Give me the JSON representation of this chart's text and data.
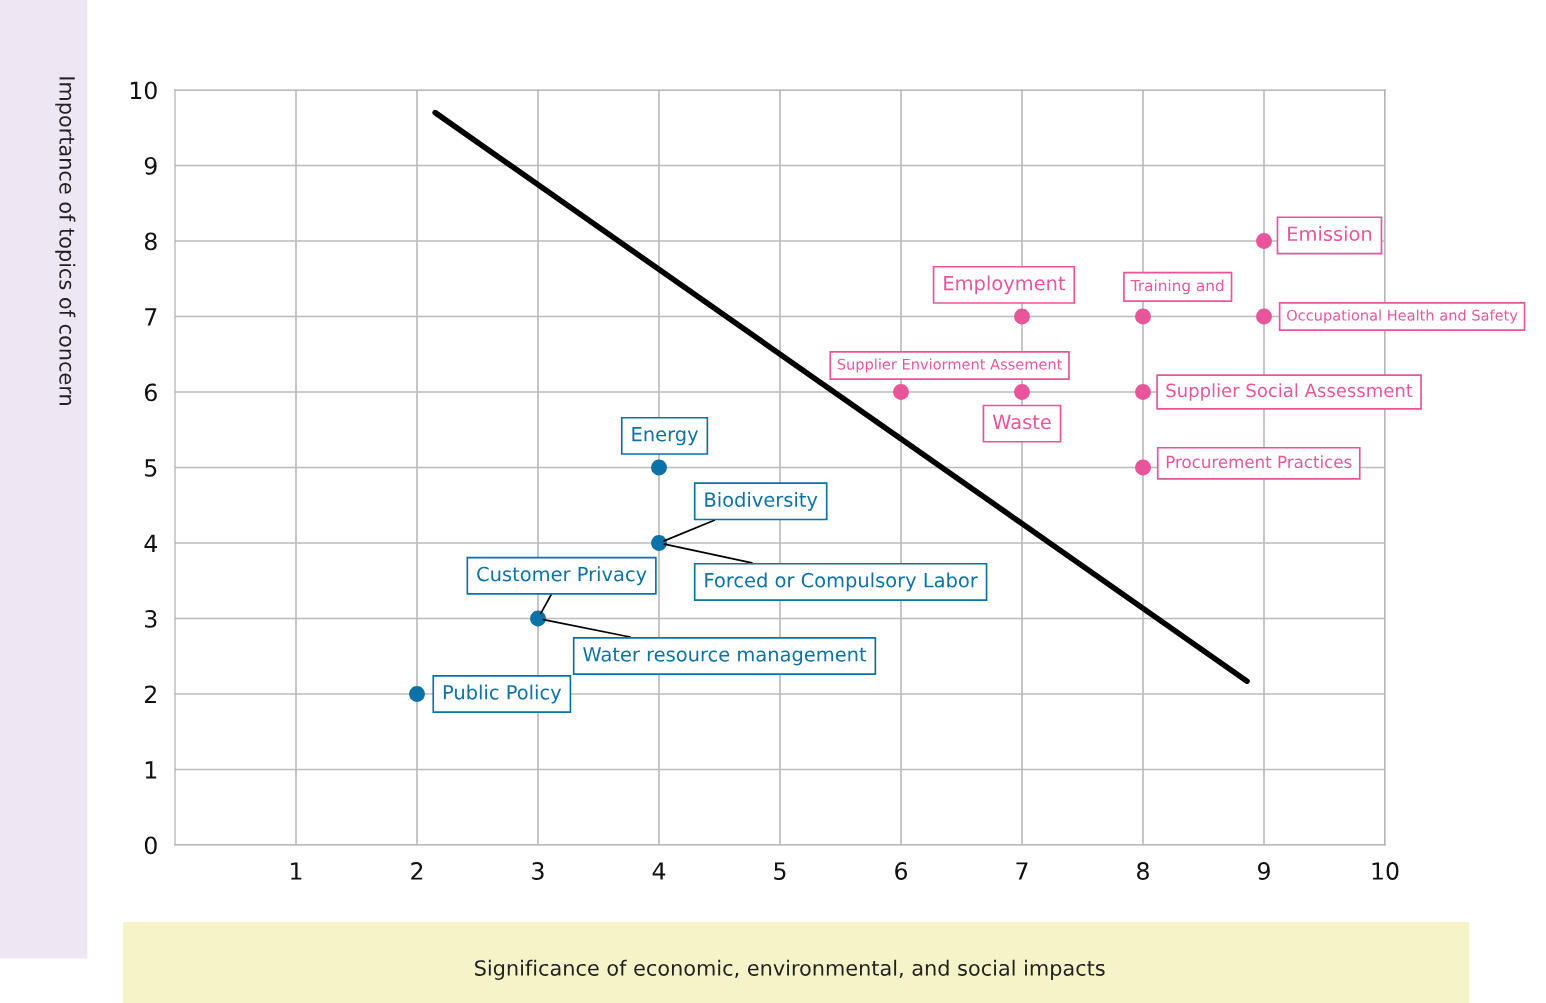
{
  "chart_data": {
    "type": "scatter",
    "xlabel": "Significance of economic, environmental, and social impacts",
    "ylabel": "Importance of topics of concern",
    "xlim": [
      0,
      10
    ],
    "ylim": [
      0,
      10
    ],
    "xticks": [
      1,
      2,
      3,
      4,
      5,
      6,
      7,
      8,
      9,
      10
    ],
    "yticks": [
      0,
      1,
      2,
      3,
      4,
      5,
      6,
      7,
      8,
      9,
      10
    ],
    "grid": true,
    "marker": "circle",
    "series": [
      {
        "color": "#0a72a6",
        "x": [
          2,
          3,
          4,
          4
        ],
        "values": [
          2,
          3,
          4,
          5
        ]
      },
      {
        "color": "#e8559a",
        "x": [
          6,
          7,
          8,
          7,
          8,
          9,
          9,
          8
        ],
        "values": [
          6,
          6,
          6,
          7,
          7,
          7,
          8,
          5
        ]
      },
      {
        "type": "line",
        "color": "#000000",
        "marker": "none",
        "x": [
          2.15,
          8.86
        ],
        "values": [
          9.7,
          2.17
        ]
      }
    ],
    "annotations": [
      {
        "text": "Emission",
        "x": 9,
        "y": 8
      },
      {
        "text": "Employment",
        "x": 7,
        "y": 7
      },
      {
        "text": "Training and",
        "x": 8,
        "y": 7
      },
      {
        "text": "Occupational Health and Safety",
        "x": 9,
        "y": 7
      },
      {
        "text": "Supplier Enviorment Assement",
        "x": 6,
        "y": 6
      },
      {
        "text": "Waste",
        "x": 7,
        "y": 6
      },
      {
        "text": "Supplier Social Assessment",
        "x": 8,
        "y": 6
      },
      {
        "text": "Procurement Practices",
        "x": 8,
        "y": 5
      },
      {
        "text": "Energy",
        "x": 4,
        "y": 5
      },
      {
        "text": "Biodiversity",
        "x": 4,
        "y": 4
      },
      {
        "text": "Forced or Compulsory Labor",
        "x": 4,
        "y": 4
      },
      {
        "text": "Customer Privacy",
        "x": 3,
        "y": 3
      },
      {
        "text": "Water resource management",
        "x": 3,
        "y": 3
      },
      {
        "text": "Public Policy",
        "x": 2,
        "y": 2
      }
    ]
  }
}
